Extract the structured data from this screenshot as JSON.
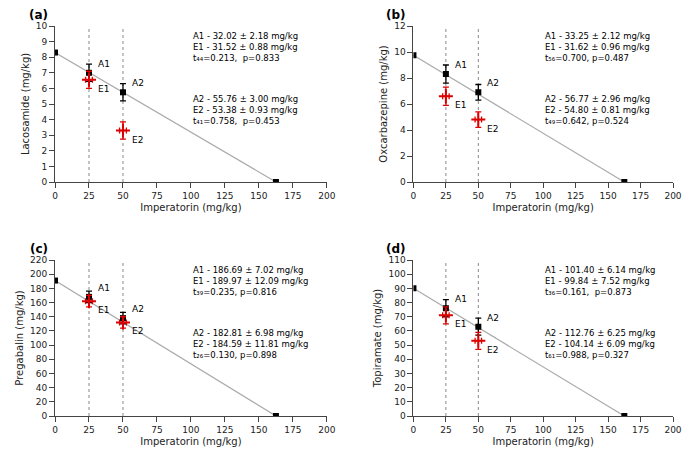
{
  "chart_data": [
    {
      "type": "scatter",
      "title": "(a)",
      "xlabel": "Imperatorin (mg/kg)",
      "ylabel": "Lacosamide (mg/kg)",
      "xlim": [
        0,
        200
      ],
      "xticks": [
        0,
        25,
        50,
        75,
        100,
        125,
        150,
        175,
        200
      ],
      "ylim": [
        0,
        10
      ],
      "yticks": [
        0,
        1,
        2,
        3,
        4,
        5,
        6,
        7,
        8,
        9,
        10
      ],
      "grid": false,
      "vlines": [
        25,
        50
      ],
      "annotations": [
        "A1 - 32.02 ± 2.18 mg/kg\nE1 - 31.52 ± 0.88 mg/kg\nt₄₄=0.213,  p=0.833",
        "A2 - 55.76 ± 3.00 mg/kg\nE2 - 53.38 ± 0.93 mg/kg\nt₄₁=0.758,  p=0.453"
      ],
      "series": [
        {
          "type": "line",
          "color": "#aaaaaa",
          "x": [
            0,
            162.5
          ],
          "values": [
            8.3,
            0
          ]
        },
        {
          "type": "scatter",
          "marker": "square",
          "color": "#000000",
          "x": [
            0,
            162.5
          ],
          "values": [
            8.3,
            0
          ]
        },
        {
          "name": "A1",
          "type": "scatter",
          "marker": "square",
          "color": "#000000",
          "x": [
            25
          ],
          "values": [
            7.0
          ],
          "yerr": [
            0.55
          ]
        },
        {
          "name": "E1",
          "type": "scatter",
          "marker": "cross",
          "color": "#dd0000",
          "x": [
            25
          ],
          "values": [
            6.55
          ],
          "xerr": [
            2.5
          ],
          "yerr": [
            0.55
          ]
        },
        {
          "name": "A2",
          "type": "scatter",
          "marker": "square",
          "color": "#000000",
          "x": [
            50
          ],
          "values": [
            5.75
          ],
          "yerr": [
            0.55
          ]
        },
        {
          "name": "E2",
          "type": "scatter",
          "marker": "cross",
          "color": "#dd0000",
          "x": [
            50
          ],
          "values": [
            3.3
          ],
          "xerr": [
            2.5
          ],
          "yerr": [
            0.55
          ]
        }
      ]
    },
    {
      "type": "scatter",
      "title": "(b)",
      "xlabel": "Imperatorin (mg/kg)",
      "ylabel": "Oxcarbazepine (mg/kg)",
      "xlim": [
        0,
        200
      ],
      "xticks": [
        0,
        25,
        50,
        75,
        100,
        125,
        150,
        175,
        200
      ],
      "ylim": [
        0,
        12
      ],
      "yticks": [
        0,
        2,
        4,
        6,
        8,
        10,
        12
      ],
      "grid": false,
      "vlines": [
        25,
        50
      ],
      "annotations": [
        "A1 - 33.25 ± 2.12 mg/kg\nE1 - 31.62 ± 0.96 mg/kg\nt₅₆=0.700, p=0.487",
        "A2 - 56.77 ± 2.96 mg/kg\nE2 - 54.80 ± 0.81 mg/kg\nt₄₉=0.642, p=0.524"
      ],
      "series": [
        {
          "type": "line",
          "color": "#aaaaaa",
          "x": [
            0,
            162.5
          ],
          "values": [
            9.75,
            0
          ]
        },
        {
          "type": "scatter",
          "marker": "square",
          "color": "#000000",
          "x": [
            0,
            162.5
          ],
          "values": [
            9.75,
            0
          ]
        },
        {
          "name": "A1",
          "type": "scatter",
          "marker": "square",
          "color": "#000000",
          "x": [
            25
          ],
          "values": [
            8.3
          ],
          "yerr": [
            0.7
          ]
        },
        {
          "name": "E1",
          "type": "scatter",
          "marker": "cross",
          "color": "#dd0000",
          "x": [
            25
          ],
          "values": [
            6.6
          ],
          "xerr": [
            2.5
          ],
          "yerr": [
            0.7
          ]
        },
        {
          "name": "A2",
          "type": "scatter",
          "marker": "square",
          "color": "#000000",
          "x": [
            50
          ],
          "values": [
            6.9
          ],
          "yerr": [
            0.6
          ]
        },
        {
          "name": "E2",
          "type": "scatter",
          "marker": "cross",
          "color": "#dd0000",
          "x": [
            50
          ],
          "values": [
            4.8
          ],
          "xerr": [
            2.5
          ],
          "yerr": [
            0.6
          ]
        }
      ]
    },
    {
      "type": "scatter",
      "title": "(c)",
      "xlabel": "Imperatorin (mg/kg)",
      "ylabel": "Pregabalin (mg/kg)",
      "xlim": [
        0,
        200
      ],
      "xticks": [
        0,
        25,
        50,
        75,
        100,
        125,
        150,
        175,
        200
      ],
      "ylim": [
        0,
        220
      ],
      "yticks": [
        0,
        20,
        40,
        60,
        80,
        100,
        120,
        140,
        160,
        180,
        200,
        220
      ],
      "grid": false,
      "vlines": [
        25,
        50
      ],
      "annotations": [
        "A1 - 186.69 ± 7.02 mg/kg\nE1 - 189.97 ± 12.09 mg/kg\nt₃₉=0.235, p=0.816",
        "A2 - 182.81 ± 6.98 mg/kg\nE2 - 184.59 ± 11.81 mg/kg\nt₂₆=0.130, p=0.898"
      ],
      "series": [
        {
          "type": "line",
          "color": "#aaaaaa",
          "x": [
            0,
            162.5
          ],
          "values": [
            191,
            0
          ]
        },
        {
          "type": "scatter",
          "marker": "square",
          "color": "#000000",
          "x": [
            0,
            162.5
          ],
          "values": [
            191,
            0
          ]
        },
        {
          "name": "A1",
          "type": "scatter",
          "marker": "square",
          "color": "#000000",
          "x": [
            25
          ],
          "values": [
            168
          ],
          "yerr": [
            8.0
          ]
        },
        {
          "name": "E1",
          "type": "scatter",
          "marker": "cross",
          "color": "#dd0000",
          "x": [
            25
          ],
          "values": [
            162
          ],
          "xerr": [
            2.5
          ],
          "yerr": [
            8.0
          ]
        },
        {
          "name": "A2",
          "type": "scatter",
          "marker": "square",
          "color": "#000000",
          "x": [
            50
          ],
          "values": [
            138
          ],
          "yerr": [
            8.0
          ]
        },
        {
          "name": "E2",
          "type": "scatter",
          "marker": "cross",
          "color": "#dd0000",
          "x": [
            50
          ],
          "values": [
            132
          ],
          "xerr": [
            2.5
          ],
          "yerr": [
            8.0
          ]
        }
      ]
    },
    {
      "type": "scatter",
      "title": "(d)",
      "xlabel": "Imperatorin (mg/kg)",
      "ylabel": "Topiramate (mg/kg)",
      "xlim": [
        0,
        200
      ],
      "xticks": [
        0,
        25,
        50,
        75,
        100,
        125,
        150,
        175,
        200
      ],
      "ylim": [
        0,
        110
      ],
      "yticks": [
        0,
        10,
        20,
        30,
        40,
        50,
        60,
        70,
        80,
        90,
        100,
        110
      ],
      "grid": false,
      "vlines": [
        25,
        50
      ],
      "annotations": [
        "A1 - 101.40 ± 6.14 mg/kg\nE1 - 99.84 ± 7.52 mg/kg\nt₃₆=0.161,  p=0.873",
        "A2 - 112.76 ± 6.25 mg/kg\nE2 - 104.14 ± 6.09 mg/kg\nt₆₁=0.988, p=0.327"
      ],
      "series": [
        {
          "type": "line",
          "color": "#aaaaaa",
          "x": [
            0,
            162.5
          ],
          "values": [
            90,
            0
          ]
        },
        {
          "type": "scatter",
          "marker": "square",
          "color": "#000000",
          "x": [
            0,
            162.5
          ],
          "values": [
            90,
            0
          ]
        },
        {
          "name": "A1",
          "type": "scatter",
          "marker": "square",
          "color": "#000000",
          "x": [
            25
          ],
          "values": [
            76
          ],
          "yerr": [
            6.0
          ]
        },
        {
          "name": "E1",
          "type": "scatter",
          "marker": "cross",
          "color": "#dd0000",
          "x": [
            25
          ],
          "values": [
            71
          ],
          "xerr": [
            2.5
          ],
          "yerr": [
            6.0
          ]
        },
        {
          "name": "A2",
          "type": "scatter",
          "marker": "square",
          "color": "#000000",
          "x": [
            50
          ],
          "values": [
            63
          ],
          "yerr": [
            6.0
          ]
        },
        {
          "name": "E2",
          "type": "scatter",
          "marker": "cross",
          "color": "#dd0000",
          "x": [
            50
          ],
          "values": [
            53
          ],
          "xerr": [
            2.5
          ],
          "yerr": [
            6.0
          ]
        }
      ]
    }
  ]
}
